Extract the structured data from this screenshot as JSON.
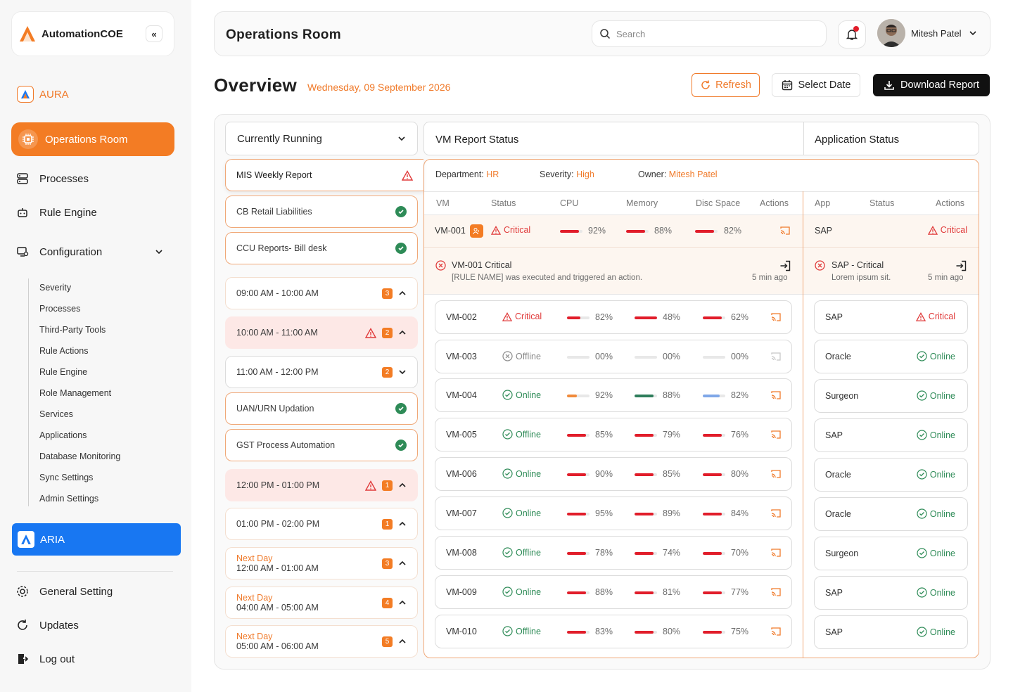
{
  "brand": {
    "name": "AutomationCOE",
    "collapse": "«"
  },
  "sidebar": {
    "aura": "AURA",
    "active": "Operations Room",
    "processes": "Processes",
    "rule_engine": "Rule Engine",
    "configuration": "Configuration",
    "sub_items": [
      "Severity",
      "Processes",
      "Third-Party Tools",
      "Rule Actions",
      "Rule Engine",
      "Role Management",
      "Services",
      "Applications",
      "Database Monitoring",
      "Sync Settings",
      "Admin Settings"
    ],
    "aria": "ARIA",
    "general_setting": "General Setting",
    "updates": "Updates",
    "logout": "Log out"
  },
  "header": {
    "title": "Operations Room",
    "search_placeholder": "Search",
    "user_name": "Mitesh Patel"
  },
  "overview": {
    "title": "Overview",
    "date": "Wednesday, 09 September 2026",
    "refresh": "Refresh",
    "select_date": "Select Date",
    "download": "Download Report"
  },
  "left": {
    "dropdown": "Currently Running",
    "selected": "MIS Weekly Report",
    "items": [
      {
        "label": "CB Retail Liabilities",
        "type": "ok"
      },
      {
        "label": "CCU Reports- Bill desk",
        "type": "ok"
      },
      {
        "label": "09:00 AM - 10:00 AM",
        "badge": "3",
        "type": "slot"
      },
      {
        "label": "10:00 AM - 11:00 AM",
        "badge": "2",
        "type": "alert"
      },
      {
        "label": "11:00 AM - 12:00 PM",
        "badge": "2",
        "type": "open"
      },
      {
        "label": "UAN/URN Updation",
        "type": "ok"
      },
      {
        "label": "GST Process Automation",
        "type": "ok"
      },
      {
        "label": "12:00 PM - 01:00 PM",
        "badge": "1",
        "type": "alert"
      },
      {
        "label": "01:00 PM - 02:00 PM",
        "badge": "1",
        "type": "slot"
      },
      {
        "next": "Next Day",
        "label": "12:00 AM - 01:00 AM",
        "badge": "3",
        "type": "slot"
      },
      {
        "next": "Next Day",
        "label": "04:00 AM - 05:00 AM",
        "badge": "4",
        "type": "slot"
      },
      {
        "next": "Next Day",
        "label": "05:00 AM - 06:00 AM",
        "badge": "5",
        "type": "slot"
      }
    ]
  },
  "panel": {
    "vm_title": "VM Report Status",
    "app_title": "Application  Status",
    "dept_label": "Department:",
    "dept": "HR",
    "sev_label": "Severity:",
    "sev": "High",
    "owner_label": "Owner:",
    "owner": "Mitesh Patel",
    "vm_headers": [
      "VM",
      "Status",
      "CPU",
      "Memory",
      "Disc Space",
      "Actions"
    ],
    "app_headers": [
      "App",
      "Status",
      "Actions"
    ],
    "alert_vm": {
      "title": "VM-001 Critical",
      "desc": "[RULE NAME] was executed and triggered an action.",
      "time": "5 min ago"
    },
    "alert_app": {
      "title": "SAP - Critical",
      "desc": "Lorem ipsum sit.",
      "time": "5 min ago"
    }
  },
  "vms": [
    {
      "vm": "VM-001",
      "status": "Critical",
      "cpu": "92%",
      "mem": "88%",
      "disk": "82%",
      "cpu_v": 0.85,
      "mem_v": 0.85,
      "disk_v": 0.85
    },
    {
      "vm": "VM-002",
      "status": "Critical",
      "cpu": "82%",
      "mem": "48%",
      "disk": "62%",
      "cpu_v": 0.6,
      "mem_v": 1,
      "disk_v": 0.85
    },
    {
      "vm": "VM-003",
      "status": "Offline",
      "cpu": "00%",
      "mem": "00%",
      "disk": "00%",
      "cpu_v": 0,
      "mem_v": 0,
      "disk_v": 0
    },
    {
      "vm": "VM-004",
      "status": "Online",
      "cpu": "92%",
      "mem": "88%",
      "disk": "82%",
      "cpu_v": 0.45,
      "mem_v": 0.85,
      "disk_v": 0.75
    },
    {
      "vm": "VM-005",
      "status": "Offline",
      "cpu": "85%",
      "mem": "79%",
      "disk": "76%",
      "cpu_v": 0.85,
      "mem_v": 0.85,
      "disk_v": 0.85
    },
    {
      "vm": "VM-006",
      "status": "Online",
      "cpu": "90%",
      "mem": "85%",
      "disk": "80%",
      "cpu_v": 0.85,
      "mem_v": 0.85,
      "disk_v": 0.85
    },
    {
      "vm": "VM-007",
      "status": "Online",
      "cpu": "95%",
      "mem": "89%",
      "disk": "84%",
      "cpu_v": 0.85,
      "mem_v": 0.85,
      "disk_v": 0.85
    },
    {
      "vm": "VM-008",
      "status": "Offline",
      "cpu": "78%",
      "mem": "74%",
      "disk": "70%",
      "cpu_v": 0.85,
      "mem_v": 0.85,
      "disk_v": 0.85
    },
    {
      "vm": "VM-009",
      "status": "Online",
      "cpu": "88%",
      "mem": "81%",
      "disk": "77%",
      "cpu_v": 0.85,
      "mem_v": 0.85,
      "disk_v": 0.85
    },
    {
      "vm": "VM-010",
      "status": "Offline",
      "cpu": "83%",
      "mem": "80%",
      "disk": "75%",
      "cpu_v": 0.85,
      "mem_v": 0.85,
      "disk_v": 0.85
    }
  ],
  "apps": [
    {
      "app": "SAP",
      "status": "Critical"
    },
    {
      "app": "SAP",
      "status": "Critical"
    },
    {
      "app": "Oracle",
      "status": "Online"
    },
    {
      "app": "Surgeon",
      "status": "Online"
    },
    {
      "app": "SAP",
      "status": "Online"
    },
    {
      "app": "Oracle",
      "status": "Online"
    },
    {
      "app": "Oracle",
      "status": "Online"
    },
    {
      "app": "Surgeon",
      "status": "Online"
    },
    {
      "app": "SAP",
      "status": "Online"
    },
    {
      "app": "SAP",
      "status": "Online"
    }
  ],
  "colors": {
    "accent": "#f37c24",
    "critical": "#e03a3a",
    "online": "#2e8b57",
    "aria": "#1877f2",
    "bar_red": "#e11d2a",
    "bar_orange": "#f08a3a",
    "bar_green": "#2e7d5b",
    "bar_blue": "#7fa7e8"
  }
}
